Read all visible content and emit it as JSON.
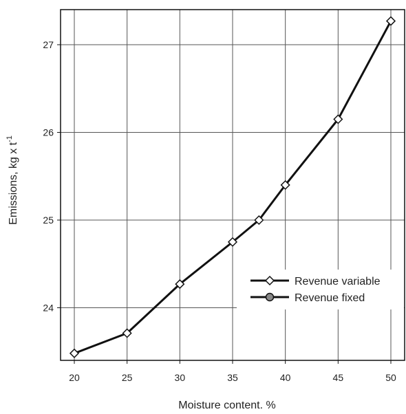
{
  "chart_data": {
    "type": "line",
    "title": "",
    "xlabel": "Moisture content. %",
    "ylabel": "Emissions, kg x t",
    "ylabel_superscript": "-1",
    "xlim": [
      20,
      50
    ],
    "ylim": [
      23.4,
      27.4
    ],
    "xticks": [
      20,
      25,
      30,
      35,
      40,
      45,
      50
    ],
    "yticks": [
      24,
      25,
      26,
      27
    ],
    "grid": true,
    "legend_position": "center-right",
    "series": [
      {
        "name": "Revenue variable",
        "marker": "diamond",
        "marker_color": "#ffffff",
        "line_color": "#111111",
        "x": [
          20,
          25,
          30,
          35,
          37.5,
          40,
          45,
          50
        ],
        "y": [
          23.48,
          23.71,
          24.27,
          24.75,
          25.0,
          25.4,
          26.15,
          27.27
        ]
      },
      {
        "name": "Revenue fixed",
        "marker": "circle",
        "marker_color": "#888888",
        "line_color": "#111111",
        "x": [],
        "y": []
      }
    ]
  }
}
